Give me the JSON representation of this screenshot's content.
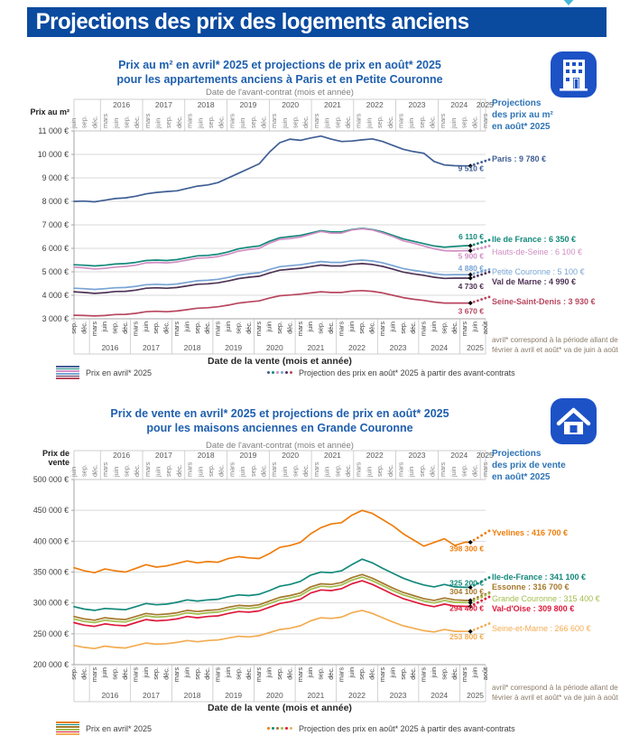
{
  "page": {
    "banner_title": "Projections des prix des logements anciens"
  },
  "colors": {
    "banner_bg": "#0a4a9f",
    "icon_bg": "#1d52c6",
    "title_blue": "#1f5fae",
    "header_blue": "#2e74b5",
    "footnote": "#8a7a68",
    "arrow": "#45b7d8"
  },
  "axes": {
    "years": [
      "2016",
      "2017",
      "2018",
      "2019",
      "2020",
      "2021",
      "2022",
      "2023",
      "2024",
      "2025"
    ],
    "top_title": "Date de l'avant-contrat (mois et année)",
    "top_months": [
      "juin",
      "sep.",
      "déc.",
      "mars",
      "juin",
      "sep.",
      "déc.",
      "mars",
      "juin",
      "sep.",
      "déc.",
      "mars",
      "juin",
      "sep.",
      "déc.",
      "mars",
      "juin",
      "sep.",
      "déc.",
      "mars",
      "juin",
      "sep.",
      "déc.",
      "mars",
      "juin",
      "sep.",
      "déc.",
      "mars",
      "juin",
      "sep.",
      "déc.",
      "mars",
      "juin",
      "sep.",
      "déc.",
      "mars",
      "juin",
      "sep.",
      "déc.",
      "mars"
    ],
    "bottom_months": [
      "sep.",
      "déc.",
      "mars",
      "juin",
      "sep.",
      "déc.",
      "mars",
      "juin",
      "sep.",
      "déc.",
      "mars",
      "juin",
      "sep.",
      "déc.",
      "mars",
      "juin",
      "sep.",
      "déc.",
      "mars",
      "juin",
      "sep.",
      "déc.",
      "mars",
      "juin",
      "sep.",
      "déc.",
      "mars",
      "juin",
      "sep.",
      "déc.",
      "mars",
      "juin",
      "sep.",
      "déc.",
      "mars",
      "juin",
      "sep.",
      "déc.",
      "mars",
      "juin",
      "août"
    ]
  },
  "chart_data": [
    {
      "type": "line",
      "title_lines": [
        "Prix au m² en avril* 2025 et projections de prix en août* 2025",
        "pour les appartements anciens à Paris et en Petite Couronne"
      ],
      "icon": "building-icon",
      "bottom_title": "Date de la vente (mois et année)",
      "y_axis": {
        "label_lines": [
          "Prix au m²"
        ],
        "min": 3000,
        "max": 11000,
        "step": 1000,
        "tick_labels": [
          "11 000 €",
          "10 000 €",
          "9 000 €",
          "8 000 €",
          "7 000 €",
          "6 000 €",
          "5 000 €",
          "4 000 €",
          "3 000 €"
        ]
      },
      "right_panel": {
        "header_lines": [
          "Projections",
          "des prix au m²",
          "en août* 2025"
        ],
        "footnote": "avril* correspond à la période allant de février à avril et août* va de juin à août"
      },
      "legend": {
        "line_label": "Prix en avril* 2025",
        "dots_label": "Projection des prix en août* 2025 à partir des avant-contrats"
      },
      "series": [
        {
          "name": "Paris",
          "color": "#3f5e94",
          "bold": true,
          "end_label": "9 510 €",
          "end_value": 9510,
          "projection_value": 9780,
          "projection_label": "Paris : 9 780 €",
          "values": [
            8000,
            8010,
            7980,
            8050,
            8120,
            8150,
            8220,
            8320,
            8380,
            8420,
            8450,
            8550,
            8650,
            8700,
            8800,
            9000,
            9200,
            9400,
            9600,
            10100,
            10500,
            10650,
            10600,
            10700,
            10780,
            10650,
            10550,
            10570,
            10620,
            10660,
            10550,
            10380,
            10220,
            10120,
            10050,
            9700,
            9550,
            9520,
            9510
          ]
        },
        {
          "name": "Ile de France",
          "color": "#13897b",
          "bold": true,
          "end_label": "6 110 €",
          "end_value": 6110,
          "projection_value": 6350,
          "projection_label": "Ile de France : 6 350 €",
          "values": [
            5300,
            5280,
            5250,
            5280,
            5330,
            5350,
            5400,
            5480,
            5500,
            5480,
            5520,
            5600,
            5680,
            5700,
            5750,
            5850,
            5980,
            6050,
            6100,
            6300,
            6450,
            6500,
            6550,
            6650,
            6750,
            6700,
            6700,
            6800,
            6850,
            6800,
            6700,
            6550,
            6400,
            6300,
            6200,
            6100,
            6050,
            6080,
            6110
          ]
        },
        {
          "name": "Hauts-de-Seine",
          "color": "#d18fc4",
          "bold": false,
          "end_label": "5 900 €",
          "end_value": 5900,
          "projection_value": 6100,
          "projection_label": "Hauts-de-Seine : 6 100 €",
          "values": [
            5200,
            5170,
            5120,
            5150,
            5200,
            5230,
            5280,
            5380,
            5400,
            5380,
            5420,
            5500,
            5580,
            5600,
            5650,
            5750,
            5880,
            5950,
            6000,
            6220,
            6380,
            6420,
            6480,
            6600,
            6720,
            6650,
            6650,
            6780,
            6830,
            6780,
            6650,
            6500,
            6320,
            6220,
            6100,
            5980,
            5900,
            5890,
            5900
          ]
        },
        {
          "name": "Petite Couronne",
          "color": "#78a4d4",
          "bold": false,
          "end_label": "4 880 €",
          "end_value": 4880,
          "projection_value": 5100,
          "projection_label": "Petite Couronne : 5 100 €",
          "values": [
            4300,
            4280,
            4250,
            4280,
            4320,
            4330,
            4380,
            4450,
            4470,
            4450,
            4480,
            4550,
            4620,
            4640,
            4680,
            4760,
            4860,
            4920,
            4960,
            5100,
            5220,
            5260,
            5300,
            5370,
            5440,
            5400,
            5400,
            5470,
            5500,
            5460,
            5380,
            5260,
            5140,
            5060,
            5000,
            4920,
            4870,
            4880,
            4880
          ]
        },
        {
          "name": "Val de Marne",
          "color": "#4e3355",
          "bold": true,
          "end_label": "4 730 €",
          "end_value": 4730,
          "projection_value": 4990,
          "projection_label": "Val de Marne : 4 990 €",
          "values": [
            4150,
            4120,
            4080,
            4110,
            4160,
            4170,
            4220,
            4300,
            4320,
            4300,
            4330,
            4400,
            4470,
            4490,
            4530,
            4610,
            4710,
            4770,
            4810,
            4950,
            5070,
            5110,
            5150,
            5220,
            5290,
            5250,
            5250,
            5320,
            5350,
            5310,
            5230,
            5110,
            4990,
            4910,
            4850,
            4770,
            4720,
            4730,
            4730
          ]
        },
        {
          "name": "Seine-Saint-Denis",
          "color": "#b8465f",
          "bold": true,
          "end_label": "3 670 €",
          "end_value": 3670,
          "projection_value": 3930,
          "projection_label": "Seine-Saint-Denis : 3 930 €",
          "values": [
            3150,
            3140,
            3120,
            3140,
            3180,
            3190,
            3230,
            3300,
            3320,
            3300,
            3330,
            3390,
            3450,
            3470,
            3510,
            3580,
            3670,
            3720,
            3760,
            3880,
            3980,
            4010,
            4050,
            4100,
            4150,
            4120,
            4120,
            4180,
            4200,
            4170,
            4100,
            4000,
            3900,
            3830,
            3780,
            3710,
            3670,
            3670,
            3670
          ]
        }
      ]
    },
    {
      "type": "line",
      "title_lines": [
        "Prix de vente en avril* 2025 et projections de prix en août* 2025",
        "pour les maisons anciennes en Grande Couronne"
      ],
      "icon": "house-icon",
      "bottom_title": "Date de la vente (mois et année)",
      "y_axis": {
        "label_lines": [
          "Prix de",
          "vente"
        ],
        "min": 200000,
        "max": 500000,
        "step": 50000,
        "tick_labels": [
          "500 000 €",
          "450 000 €",
          "400 000 €",
          "350 000 €",
          "300 000 €",
          "250 000 €",
          "200 000 €"
        ]
      },
      "right_panel": {
        "header_lines": [
          "Projections",
          "des prix de vente",
          "en août* 2025"
        ],
        "footnote": "avril* correspond à la période allant de février à avril et août* va de juin à août"
      },
      "legend": {
        "line_label": "Prix en avril* 2025",
        "dots_label": "Projection des prix en août* 2025 à partir des avant-contrats"
      },
      "series": [
        {
          "name": "Yvelines",
          "color": "#ef7d0c",
          "bold": true,
          "end_label": "398 300 €",
          "end_value": 398300,
          "projection_value": 416700,
          "projection_label": "Yvelines : 416 700 €",
          "values": [
            357000,
            352000,
            349000,
            355000,
            352000,
            350000,
            356000,
            362000,
            358000,
            360000,
            364000,
            368000,
            365000,
            367000,
            366000,
            372000,
            375000,
            373000,
            372000,
            380000,
            390000,
            393000,
            398000,
            412000,
            422000,
            428000,
            430000,
            442000,
            450000,
            445000,
            435000,
            425000,
            412000,
            402000,
            392000,
            398000,
            404000,
            393000,
            398300
          ]
        },
        {
          "name": "Ile-de-France",
          "color": "#13897b",
          "bold": true,
          "end_label": "325 200 €",
          "end_value": 325200,
          "projection_value": 341100,
          "projection_label": "Ile-de-France : 341 100 €",
          "values": [
            294000,
            290000,
            288000,
            291000,
            290000,
            289000,
            294000,
            299000,
            297000,
            298000,
            301000,
            305000,
            303000,
            305000,
            306000,
            310000,
            313000,
            312000,
            314000,
            320000,
            327000,
            330000,
            335000,
            345000,
            350000,
            349000,
            352000,
            362000,
            371000,
            365000,
            356000,
            348000,
            340000,
            334000,
            329000,
            326000,
            330000,
            326000,
            325200
          ]
        },
        {
          "name": "Essonne",
          "color": "#a5792b",
          "bold": true,
          "end_label": "304 100 €",
          "end_value": 304100,
          "projection_value": 316700,
          "projection_label": "Essonne : 316 700 €",
          "values": [
            278000,
            274000,
            272000,
            276000,
            274000,
            273000,
            278000,
            283000,
            281000,
            282000,
            284000,
            288000,
            286000,
            288000,
            289000,
            293000,
            296000,
            295000,
            297000,
            303000,
            309000,
            312000,
            316000,
            326000,
            331000,
            330000,
            333000,
            341000,
            346000,
            340000,
            332000,
            324000,
            317000,
            312000,
            307000,
            304000,
            308000,
            305000,
            304100
          ]
        },
        {
          "name": "Grande Couronne",
          "color": "#a2bd4c",
          "bold": false,
          "end_label": "",
          "end_value": 300500,
          "projection_value": 315400,
          "projection_label": "Grande Couronne : 315 400 €",
          "values": [
            274000,
            270000,
            268000,
            272000,
            270000,
            269000,
            274000,
            279000,
            277000,
            278000,
            280000,
            284000,
            282000,
            284000,
            285000,
            289000,
            292000,
            291000,
            293000,
            299000,
            305000,
            308000,
            312000,
            322000,
            327000,
            326000,
            329000,
            337000,
            342000,
            336000,
            328000,
            320000,
            313000,
            308000,
            303000,
            300000,
            304000,
            301000,
            300500
          ]
        },
        {
          "name": "Val-d'Oise",
          "color": "#dd1a3b",
          "bold": true,
          "end_label": "294 400 €",
          "end_value": 294400,
          "projection_value": 309800,
          "projection_label": "Val-d'Oise : 309 800 €",
          "values": [
            268000,
            264000,
            262000,
            266000,
            264000,
            263000,
            268000,
            273000,
            271000,
            272000,
            274000,
            278000,
            276000,
            278000,
            279000,
            283000,
            286000,
            285000,
            287000,
            293000,
            299000,
            302000,
            306000,
            316000,
            321000,
            320000,
            323000,
            331000,
            336000,
            330000,
            322000,
            314000,
            307000,
            302000,
            297000,
            294000,
            298000,
            295000,
            294400
          ]
        },
        {
          "name": "Seine-et-Marne",
          "color": "#f3ac52",
          "bold": false,
          "end_label": "253 800 €",
          "end_value": 253800,
          "projection_value": 266600,
          "projection_label": "Seine-et-Marne : 266 600 €",
          "values": [
            231000,
            228000,
            226000,
            230000,
            228000,
            227000,
            231000,
            235000,
            233000,
            234000,
            236000,
            239000,
            237000,
            239000,
            240000,
            243000,
            246000,
            245000,
            247000,
            252000,
            257000,
            259000,
            263000,
            271000,
            276000,
            275000,
            277000,
            284000,
            288000,
            283000,
            276000,
            269000,
            263000,
            259000,
            255000,
            253000,
            257000,
            254000,
            253800
          ]
        }
      ]
    }
  ]
}
